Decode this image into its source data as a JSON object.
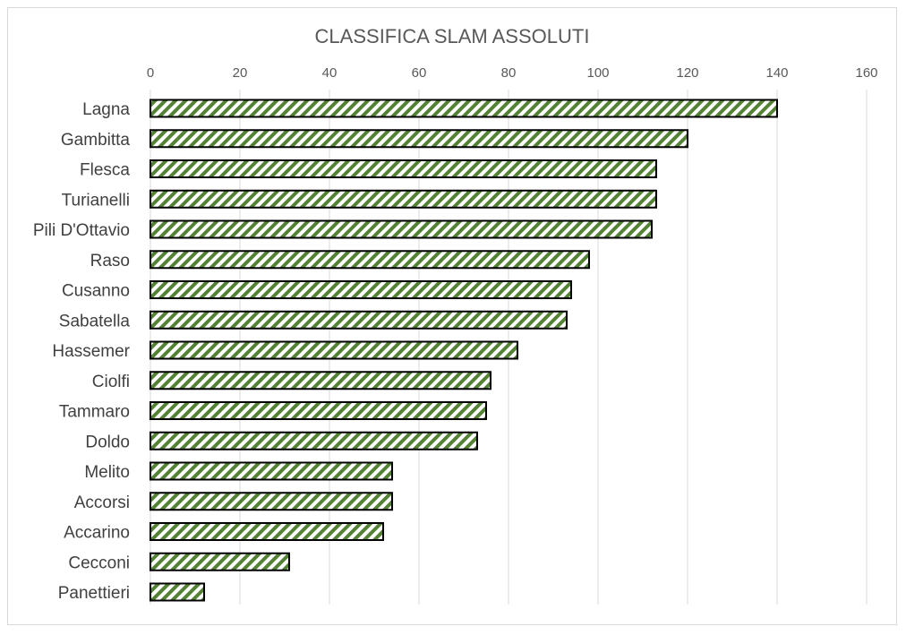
{
  "chart_data": {
    "type": "bar",
    "orientation": "horizontal",
    "title": "CLASSIFICA SLAM ASSOLUTI",
    "xlabel": "",
    "ylabel": "",
    "xlim": [
      0,
      160
    ],
    "x_ticks": [
      0,
      20,
      40,
      60,
      80,
      100,
      120,
      140,
      160
    ],
    "x_axis_position": "top",
    "grid": true,
    "legend": "none",
    "categories": [
      "Lagna",
      "Gambitta",
      "Flesca",
      "Turianelli",
      "Pili D'Ottavio",
      "Raso",
      "Cusanno",
      "Sabatella",
      "Hassemer",
      "Ciolfi",
      "Tammaro",
      "Doldo",
      "Melito",
      "Accorsi",
      "Accarino",
      "Cecconi",
      "Panettieri"
    ],
    "values": [
      140,
      120,
      113,
      113,
      112,
      98,
      94,
      93,
      82,
      76,
      75,
      73,
      54,
      54,
      52,
      31,
      12
    ],
    "colors": {
      "bar_stripe": "#548235",
      "bar_background": "#ffffff",
      "bar_border": "#000000",
      "gridline": "#d9d9d9",
      "text": "#595959"
    }
  }
}
